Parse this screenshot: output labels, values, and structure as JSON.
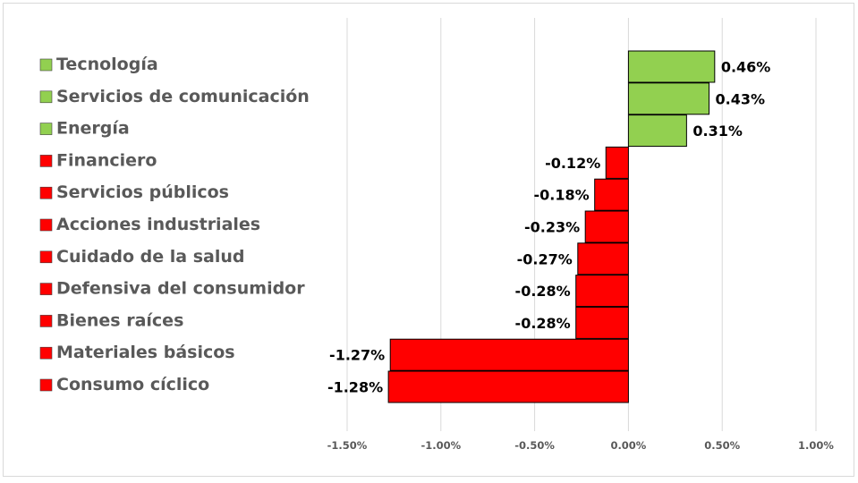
{
  "chart_data": {
    "type": "bar",
    "orientation": "horizontal",
    "categories": [
      "Tecnología",
      "Servicios de comunicación",
      "Energía",
      "Financiero",
      "Servicios públicos",
      "Acciones industriales",
      "Cuidado de la salud",
      "Defensiva del consumidor",
      "Bienes raíces",
      "Materiales básicos",
      "Consumo cíclico"
    ],
    "values": [
      0.46,
      0.43,
      0.31,
      -0.12,
      -0.18,
      -0.23,
      -0.27,
      -0.28,
      -0.28,
      -1.27,
      -1.28
    ],
    "data_labels": [
      "0.46%",
      "0.43%",
      "0.31%",
      "-0.12%",
      "-0.18%",
      "-0.23%",
      "-0.27%",
      "-0.28%",
      "-0.28%",
      "-1.27%",
      "-1.28%"
    ],
    "xlim": [
      -1.5,
      1.0
    ],
    "x_ticks": [
      -1.5,
      -1.0,
      -0.5,
      0.0,
      0.5,
      1.0
    ],
    "x_tick_labels": [
      "-1.50%",
      "-1.00%",
      "-0.50%",
      "0.00%",
      "0.50%",
      "1.00%"
    ],
    "grid": "vertical",
    "legend_position": "left",
    "colors": {
      "positive": "#92d050",
      "negative": "#ff0000",
      "gridline": "#d9d9d9",
      "bar_border": "#000000",
      "legend_text": "#595959",
      "tick_text": "#595959",
      "label_text": "#000000"
    }
  }
}
